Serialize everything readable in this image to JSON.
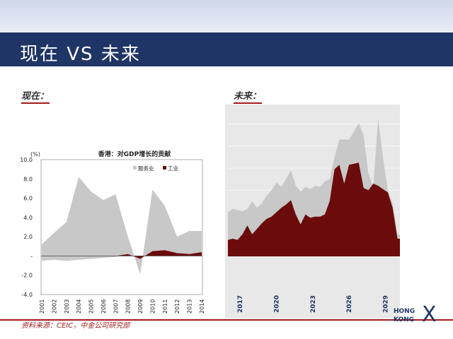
{
  "slide": {
    "title": "现在 VS 未来",
    "left_label": "现在：",
    "right_label": "未来：",
    "source": "资料来源：CEIC，中金公司研究部",
    "logo_line1": "HONG",
    "logo_line2": "KONG",
    "logo_mark": "X",
    "colors": {
      "title_bar": "#1f3566",
      "accent_red": "#a31a1a",
      "services": "#c8c8c8",
      "industry": "#6b0b0b"
    }
  },
  "chart_data": [
    {
      "type": "area",
      "title": "香港：对GDP增长的贡献",
      "ylabel": "(%)",
      "x": [
        "2001",
        "2002",
        "2003",
        "2004",
        "2005",
        "2006",
        "2007",
        "2008",
        "2009",
        "2010",
        "2011",
        "2012",
        "2013",
        "2014"
      ],
      "ylim": [
        -4.0,
        10.0
      ],
      "yticks": [
        "-4.0",
        "-2.0",
        "-",
        "2.0",
        "4.0",
        "6.0",
        "8.0",
        "10.0"
      ],
      "yticks_values": [
        -4,
        -2,
        0,
        2,
        4,
        6,
        8,
        10
      ],
      "legend": "top-right",
      "series": [
        {
          "name": "服务业",
          "color": "#c8c8c8",
          "values": [
            1.2,
            2.4,
            3.5,
            8.2,
            6.7,
            5.8,
            6.4,
            2.0,
            -1.9,
            6.9,
            5.2,
            2.0,
            2.6,
            2.6
          ],
          "lower": [
            -0.5,
            -0.4,
            -0.5,
            -0.4,
            -0.3,
            -0.2,
            -0.1,
            0.2,
            -0.3,
            0.5,
            0.6,
            0.3,
            0.2,
            0.4
          ]
        },
        {
          "name": "工业",
          "color": "#6b0b0b",
          "values": [
            0.0,
            0.0,
            0.0,
            0.0,
            0.0,
            0.0,
            0.0,
            0.2,
            -0.3,
            0.5,
            0.6,
            0.3,
            0.2,
            0.4
          ]
        }
      ]
    },
    {
      "type": "area",
      "x_ticks": [
        "2017",
        "2020",
        "2023",
        "2026",
        "2029"
      ],
      "x_start": 2016,
      "x_end": 2030.2,
      "ylim": [
        0,
        13
      ],
      "grid": true,
      "series": [
        {
          "name": "",
          "color": "#c8c8c8",
          "x": [
            2016,
            2016.4,
            2016.8,
            2017.2,
            2017.6,
            2018,
            2018.4,
            2018.8,
            2019.2,
            2019.6,
            2020,
            2020.4,
            2020.8,
            2021.2,
            2021.6,
            2022,
            2022.4,
            2022.8,
            2023.2,
            2023.6,
            2024,
            2024.4,
            2024.8,
            2025.2,
            2025.6,
            2026,
            2026.4,
            2026.8,
            2027.2,
            2027.6,
            2028,
            2028.4,
            2028.8,
            2029.2,
            2029.6,
            2030,
            2030.2
          ],
          "values": [
            4.0,
            4.3,
            4.2,
            4.1,
            4.3,
            5.0,
            4.4,
            4.8,
            5.5,
            6.0,
            6.7,
            6.3,
            7.0,
            7.8,
            6.4,
            5.9,
            6.3,
            6.1,
            6.4,
            6.3,
            6.8,
            7.0,
            9.0,
            10.6,
            10.6,
            10.6,
            11.3,
            12.1,
            11.0,
            7.5,
            6.3,
            12.5,
            9.0,
            6.0,
            4.8,
            2.0,
            2.0
          ]
        },
        {
          "name": "",
          "color": "#6b0b0b",
          "x": [
            2016,
            2016.4,
            2016.8,
            2017.2,
            2017.6,
            2018,
            2018.4,
            2018.8,
            2019.2,
            2019.6,
            2020,
            2020.4,
            2020.8,
            2021.2,
            2021.6,
            2022,
            2022.4,
            2022.8,
            2023.2,
            2023.6,
            2024,
            2024.4,
            2024.8,
            2025.2,
            2025.6,
            2026,
            2026.4,
            2026.8,
            2027.2,
            2027.6,
            2028,
            2028.4,
            2028.8,
            2029.2,
            2029.6,
            2030,
            2030.2
          ],
          "values": [
            1.5,
            1.6,
            1.5,
            2.0,
            2.8,
            2.0,
            2.5,
            3.0,
            3.4,
            3.6,
            4.0,
            4.4,
            4.7,
            5.1,
            3.8,
            2.9,
            3.8,
            3.5,
            3.6,
            3.6,
            3.8,
            5.0,
            7.9,
            8.3,
            6.6,
            8.3,
            8.4,
            8.5,
            6.2,
            6.0,
            6.6,
            6.4,
            6.1,
            5.8,
            4.4,
            1.6,
            1.6
          ]
        }
      ]
    }
  ]
}
